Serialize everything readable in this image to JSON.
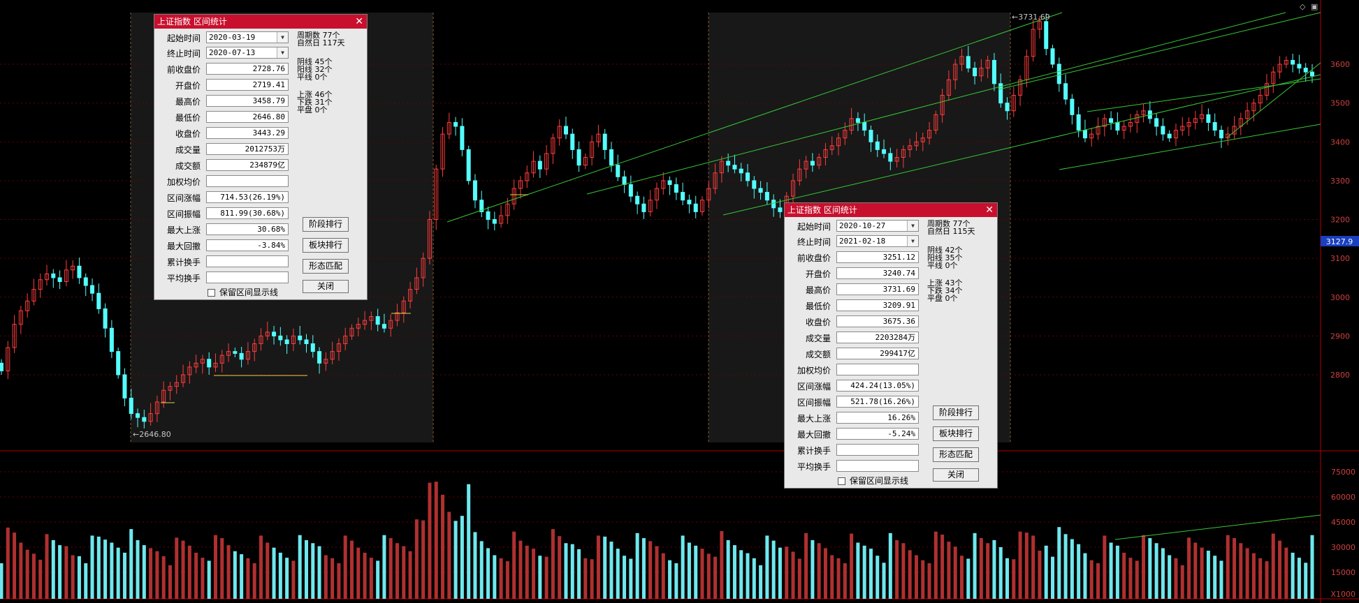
{
  "price_ticks": [
    "3600",
    "3500",
    "3400",
    "3300",
    "3200",
    "3100",
    "3000",
    "2900",
    "2800"
  ],
  "volume_ticks": [
    "75000",
    "60000",
    "45000",
    "30000",
    "15000"
  ],
  "volume_unit": "X1000",
  "current_price_tag": "3127.9",
  "annotations": {
    "low_marker": "2646.80",
    "high_marker": "3731.69"
  },
  "colors": {
    "up": "#ff3d3d",
    "down": "#54ffff",
    "grid": "#6b0000",
    "trend": "#37c837",
    "title_bar": "#c8102e"
  },
  "dialog1": {
    "title": "上证指数 区间统计",
    "start_label": "起始时间",
    "start_value": "2020-03-19",
    "end_label": "终止时间",
    "end_value": "2020-07-13",
    "fields": [
      {
        "label": "前收盘价",
        "value": "2728.76"
      },
      {
        "label": "开盘价",
        "value": "2719.41"
      },
      {
        "label": "最高价",
        "value": "3458.79"
      },
      {
        "label": "最低价",
        "value": "2646.80"
      },
      {
        "label": "收盘价",
        "value": "3443.29"
      },
      {
        "label": "成交量",
        "value": "2012753万"
      },
      {
        "label": "成交额",
        "value": "234879亿"
      },
      {
        "label": "加权均价",
        "value": ""
      },
      {
        "label": "区间涨幅",
        "value": "714.53(26.19%)"
      },
      {
        "label": "区间振幅",
        "value": "811.99(30.68%)"
      },
      {
        "label": "最大上涨",
        "value": "30.68%"
      },
      {
        "label": "最大回撤",
        "value": "-3.84%"
      },
      {
        "label": "累计换手",
        "value": ""
      },
      {
        "label": "平均换手",
        "value": ""
      }
    ],
    "stats": {
      "periods": "周期数  77个",
      "natural_days": "自然日  117天",
      "yin": "阴线  45个",
      "yang": "阳线  32个",
      "flat": "平线  0个",
      "up": "上涨  46个",
      "down": "下跌  31个",
      "flat_close": "平盘  0个"
    },
    "buttons": {
      "stage": "阶段排行",
      "sector": "板块排行",
      "pattern": "形态匹配",
      "close": "关闭"
    },
    "checkbox": "保留区间显示线"
  },
  "dialog2": {
    "title": "上证指数 区间统计",
    "start_label": "起始时间",
    "start_value": "2020-10-27",
    "end_label": "终止时间",
    "end_value": "2021-02-18",
    "fields": [
      {
        "label": "前收盘价",
        "value": "3251.12"
      },
      {
        "label": "开盘价",
        "value": "3240.74"
      },
      {
        "label": "最高价",
        "value": "3731.69"
      },
      {
        "label": "最低价",
        "value": "3209.91"
      },
      {
        "label": "收盘价",
        "value": "3675.36"
      },
      {
        "label": "成交量",
        "value": "2203284万"
      },
      {
        "label": "成交额",
        "value": "299417亿"
      },
      {
        "label": "加权均价",
        "value": ""
      },
      {
        "label": "区间涨幅",
        "value": "424.24(13.05%)"
      },
      {
        "label": "区间振幅",
        "value": "521.78(16.26%)"
      },
      {
        "label": "最大上涨",
        "value": "16.26%"
      },
      {
        "label": "最大回撤",
        "value": "-5.24%"
      },
      {
        "label": "累计换手",
        "value": ""
      },
      {
        "label": "平均换手",
        "value": ""
      }
    ],
    "stats": {
      "periods": "周期数  77个",
      "natural_days": "自然日  115天",
      "yin": "阴线  42个",
      "yang": "阳线  35个",
      "flat": "平线  0个",
      "up": "上涨  43个",
      "down": "下跌  34个",
      "flat_close": "平盘  0个"
    },
    "buttons": {
      "stage": "阶段排行",
      "sector": "板块排行",
      "pattern": "形态匹配",
      "close": "关闭"
    },
    "checkbox": "保留区间显示线"
  },
  "chart_data": {
    "type": "candlestick",
    "price_axis_ticks": [
      2800,
      2900,
      3000,
      3100,
      3200,
      3300,
      3400,
      3500,
      3600
    ],
    "volume_axis_ticks": [
      15000,
      30000,
      45000,
      60000,
      75000
    ],
    "volume_unit": "X1000",
    "closes": [
      2810,
      2870,
      2930,
      2965,
      2990,
      3020,
      3045,
      3060,
      3050,
      3040,
      3070,
      3080,
      3050,
      3030,
      3010,
      2970,
      2920,
      2860,
      2800,
      2740,
      2700,
      2690,
      2680,
      2700,
      2730,
      2760,
      2770,
      2780,
      2800,
      2820,
      2830,
      2840,
      2820,
      2830,
      2850,
      2860,
      2855,
      2840,
      2860,
      2880,
      2900,
      2910,
      2900,
      2890,
      2880,
      2900,
      2890,
      2880,
      2860,
      2830,
      2840,
      2860,
      2880,
      2900,
      2920,
      2930,
      2940,
      2950,
      2930,
      2920,
      2940,
      2960,
      2990,
      3020,
      3050,
      3100,
      3200,
      3330,
      3420,
      3450,
      3440,
      3380,
      3300,
      3250,
      3220,
      3200,
      3190,
      3210,
      3240,
      3280,
      3300,
      3320,
      3350,
      3330,
      3370,
      3410,
      3440,
      3420,
      3380,
      3340,
      3360,
      3400,
      3420,
      3380,
      3340,
      3310,
      3290,
      3260,
      3240,
      3220,
      3250,
      3280,
      3300,
      3290,
      3270,
      3250,
      3240,
      3220,
      3250,
      3280,
      3320,
      3350,
      3340,
      3330,
      3320,
      3300,
      3280,
      3270,
      3250,
      3230,
      3220,
      3260,
      3300,
      3330,
      3350,
      3340,
      3360,
      3380,
      3390,
      3410,
      3430,
      3460,
      3450,
      3430,
      3400,
      3380,
      3370,
      3350,
      3360,
      3380,
      3390,
      3400,
      3410,
      3430,
      3470,
      3520,
      3560,
      3600,
      3620,
      3590,
      3570,
      3590,
      3610,
      3550,
      3500,
      3480,
      3520,
      3560,
      3620,
      3690,
      3710,
      3640,
      3600,
      3550,
      3510,
      3470,
      3430,
      3410,
      3420,
      3440,
      3460,
      3450,
      3430,
      3440,
      3450,
      3470,
      3480,
      3460,
      3440,
      3420,
      3410,
      3430,
      3440,
      3450,
      3460,
      3470,
      3450,
      3430,
      3410,
      3420,
      3440,
      3460,
      3480,
      3500,
      3520,
      3550,
      3580,
      3600,
      3610,
      3600,
      3590,
      3580,
      3570
    ]
  }
}
